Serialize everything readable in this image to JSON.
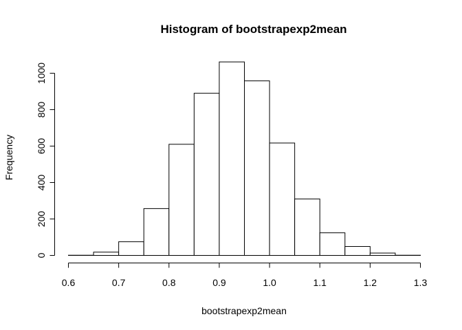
{
  "chart_data": {
    "type": "bar",
    "title": "Histogram of bootstrapexp2mean",
    "xlabel": "bootstrapexp2mean",
    "ylabel": "Frequency",
    "bin_edges": [
      0.6,
      0.65,
      0.7,
      0.75,
      0.8,
      0.85,
      0.9,
      0.95,
      1.0,
      1.05,
      1.1,
      1.15,
      1.2,
      1.25,
      1.3
    ],
    "values": [
      1,
      18,
      75,
      257,
      610,
      890,
      1062,
      958,
      617,
      310,
      124,
      49,
      13,
      1
    ],
    "xlim": [
      0.6,
      1.3
    ],
    "ylim": [
      0,
      1062
    ],
    "xticks": [
      "0.6",
      "0.7",
      "0.8",
      "0.9",
      "1.0",
      "1.1",
      "1.2",
      "1.3"
    ],
    "yticks": [
      "0",
      "200",
      "400",
      "600",
      "800",
      "1000"
    ],
    "grid": false,
    "legend": "none",
    "colors": {
      "bar_fill": "#ffffff",
      "bar_stroke": "#000000"
    }
  }
}
